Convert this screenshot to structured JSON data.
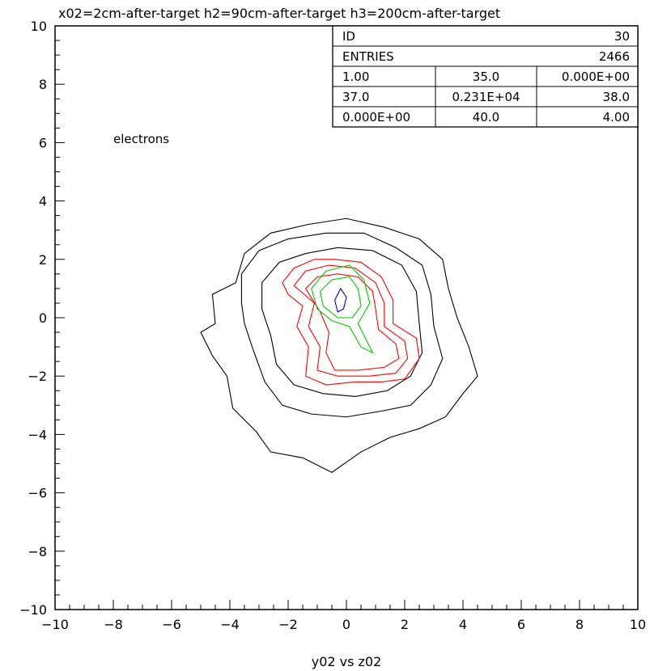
{
  "chart_data": {
    "type": "contour",
    "title": "x02=2cm-after-target  h2=90cm-after-target  h3=200cm-after-target",
    "xlabel": "y02 vs z02",
    "ylabel": "",
    "xlim": [
      -10,
      10
    ],
    "ylim": [
      -10,
      10
    ],
    "x_ticks": [
      "−10",
      "−8",
      "−6",
      "−4",
      "−2",
      "0",
      "2",
      "4",
      "6",
      "8",
      "10"
    ],
    "y_ticks": [
      "10",
      "8",
      "6",
      "4",
      "2",
      "0",
      "−2",
      "−4",
      "−6",
      "−8",
      "−10"
    ],
    "annotation": "electrons",
    "colors": {
      "outer": "#000000",
      "mid": "#ff0000",
      "inner": "#00cc00",
      "core": "#0000cc"
    },
    "contours": [
      {
        "level": "outer",
        "color": "#000000",
        "points": [
          [
            -5,
            -0.5
          ],
          [
            -4.5,
            -0.2
          ],
          [
            -4.6,
            0.8
          ],
          [
            -3.8,
            1.2
          ],
          [
            -3.5,
            2.2
          ],
          [
            -2.6,
            2.9
          ],
          [
            -1.3,
            3.2
          ],
          [
            0,
            3.4
          ],
          [
            1.3,
            3.1
          ],
          [
            2.5,
            2.7
          ],
          [
            3.3,
            2
          ],
          [
            3.5,
            1
          ],
          [
            3.8,
            0
          ],
          [
            4.2,
            -1
          ],
          [
            4.5,
            -2
          ],
          [
            4.0,
            -2.6
          ],
          [
            3.4,
            -3.4
          ],
          [
            2.5,
            -3.8
          ],
          [
            1.5,
            -4.1
          ],
          [
            0.5,
            -4.6
          ],
          [
            -0.5,
            -5.3
          ],
          [
            -1.5,
            -4.8
          ],
          [
            -2.6,
            -4.6
          ],
          [
            -3.1,
            -3.9
          ],
          [
            -3.9,
            -3.1
          ],
          [
            -4.1,
            -2
          ],
          [
            -4.6,
            -1.3
          ]
        ]
      },
      {
        "level": "outer",
        "color": "#000000",
        "points": [
          [
            -3.6,
            0.5
          ],
          [
            -3.6,
            1.5
          ],
          [
            -3,
            2.3
          ],
          [
            -2,
            2.7
          ],
          [
            -0.7,
            2.9
          ],
          [
            0.6,
            2.9
          ],
          [
            1.7,
            2.4
          ],
          [
            2.6,
            1.8
          ],
          [
            2.9,
            0.8
          ],
          [
            3.0,
            -0.3
          ],
          [
            3.3,
            -1.4
          ],
          [
            2.9,
            -2.3
          ],
          [
            2.2,
            -3.0
          ],
          [
            1.2,
            -3.2
          ],
          [
            0,
            -3.4
          ],
          [
            -1.2,
            -3.3
          ],
          [
            -2.2,
            -3.0
          ],
          [
            -2.8,
            -2.2
          ],
          [
            -3.2,
            -1.1
          ],
          [
            -3.5,
            -0.2
          ]
        ]
      },
      {
        "level": "outer",
        "color": "#000000",
        "points": [
          [
            -2.9,
            0.3
          ],
          [
            -2.9,
            1.2
          ],
          [
            -2.3,
            1.9
          ],
          [
            -1.4,
            2.2
          ],
          [
            -0.3,
            2.4
          ],
          [
            0.9,
            2.3
          ],
          [
            1.9,
            1.8
          ],
          [
            2.4,
            0.9
          ],
          [
            2.5,
            -0.2
          ],
          [
            2.6,
            -1.2
          ],
          [
            2.2,
            -2.0
          ],
          [
            1.4,
            -2.5
          ],
          [
            0.3,
            -2.7
          ],
          [
            -0.8,
            -2.6
          ],
          [
            -1.8,
            -2.3
          ],
          [
            -2.4,
            -1.6
          ],
          [
            -2.6,
            -0.6
          ]
        ]
      },
      {
        "level": "mid",
        "color": "#ff0000",
        "points": [
          [
            -2.2,
            1.2
          ],
          [
            -1.8,
            1.7
          ],
          [
            -1.1,
            2.0
          ],
          [
            -0.4,
            2.0
          ],
          [
            0.5,
            1.9
          ],
          [
            1.2,
            1.4
          ],
          [
            1.6,
            0.6
          ],
          [
            1.6,
            -0.2
          ],
          [
            2.4,
            -0.7
          ],
          [
            2.5,
            -1.4
          ],
          [
            2.0,
            -2.1
          ],
          [
            1.2,
            -2.2
          ],
          [
            0.3,
            -2.2
          ],
          [
            -0.7,
            -2.3
          ],
          [
            -1.4,
            -2.0
          ],
          [
            -1.3,
            -1.0
          ],
          [
            -1.7,
            -0.3
          ],
          [
            -1.5,
            0.4
          ],
          [
            -2.0,
            0.8
          ]
        ]
      },
      {
        "level": "mid",
        "color": "#ff0000",
        "points": [
          [
            -1.8,
            1.1
          ],
          [
            -1.4,
            1.6
          ],
          [
            -0.6,
            1.8
          ],
          [
            0.3,
            1.7
          ],
          [
            1.0,
            1.2
          ],
          [
            1.3,
            0.5
          ],
          [
            1.3,
            -0.3
          ],
          [
            2.0,
            -0.8
          ],
          [
            2.1,
            -1.4
          ],
          [
            1.7,
            -1.9
          ],
          [
            0.8,
            -2.0
          ],
          [
            -0.3,
            -2.0
          ],
          [
            -1.0,
            -1.8
          ],
          [
            -0.9,
            -1.0
          ],
          [
            -1.3,
            -0.3
          ],
          [
            -1.1,
            0.5
          ]
        ]
      },
      {
        "level": "mid",
        "color": "#ff0000",
        "points": [
          [
            -1.4,
            1.0
          ],
          [
            -1.0,
            1.4
          ],
          [
            -0.3,
            1.5
          ],
          [
            0.4,
            1.4
          ],
          [
            0.9,
            0.9
          ],
          [
            1.0,
            0.3
          ],
          [
            1.1,
            -0.4
          ],
          [
            1.7,
            -0.9
          ],
          [
            1.8,
            -1.4
          ],
          [
            1.3,
            -1.7
          ],
          [
            0.4,
            -1.8
          ],
          [
            -0.4,
            -1.8
          ],
          [
            -0.7,
            -1.2
          ],
          [
            -0.6,
            -0.5
          ],
          [
            -0.9,
            0.2
          ]
        ]
      },
      {
        "level": "inner",
        "color": "#00cc00",
        "points": [
          [
            -1.2,
            1.0
          ],
          [
            -0.7,
            1.6
          ],
          [
            0.1,
            1.8
          ],
          [
            0.6,
            1.3
          ],
          [
            0.8,
            0.5
          ],
          [
            0.4,
            -0.2
          ],
          [
            0.7,
            -0.8
          ],
          [
            0.9,
            -1.2
          ],
          [
            0.5,
            -1.0
          ],
          [
            0.1,
            -0.3
          ],
          [
            -0.5,
            -0.1
          ],
          [
            -1.0,
            0.3
          ]
        ]
      },
      {
        "level": "inner",
        "color": "#00cc00",
        "points": [
          [
            -0.9,
            0.9
          ],
          [
            -0.5,
            1.3
          ],
          [
            0.1,
            1.4
          ],
          [
            0.4,
            1.0
          ],
          [
            0.5,
            0.4
          ],
          [
            0.2,
            0.0
          ],
          [
            -0.3,
            0.0
          ],
          [
            -0.8,
            0.4
          ]
        ]
      },
      {
        "level": "core",
        "color": "#0000cc",
        "points": [
          [
            -0.3,
            0.2
          ],
          [
            -0.4,
            0.6
          ],
          [
            -0.2,
            1.0
          ],
          [
            0.0,
            0.7
          ],
          [
            -0.1,
            0.3
          ]
        ]
      }
    ],
    "stats_box": {
      "rows": [
        [
          "ID",
          "",
          "30"
        ],
        [
          "ENTRIES",
          "",
          "2466"
        ],
        [
          "1.00",
          "35.0",
          "0.000E+00"
        ],
        [
          "37.0",
          "0.231E+04",
          "38.0"
        ],
        [
          "0.000E+00",
          "40.0",
          "4.00"
        ]
      ]
    }
  }
}
